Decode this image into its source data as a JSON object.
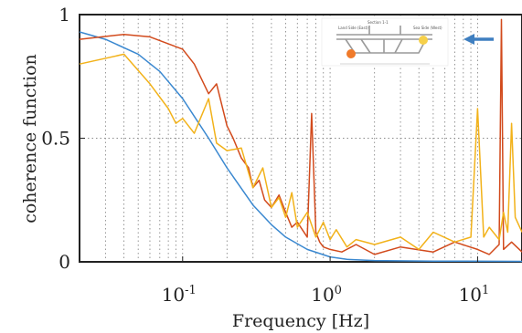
{
  "chart_data": {
    "type": "line",
    "title": "",
    "xlabel": "Frequency [Hz]",
    "ylabel": "coherence function",
    "xscale": "log",
    "xlim": [
      0.02,
      20
    ],
    "ylim": [
      0,
      1
    ],
    "x_ticks": [
      {
        "value": 0.1,
        "base": "10",
        "exp": "-1"
      },
      {
        "value": 1,
        "base": "10",
        "exp": "0"
      },
      {
        "value": 10,
        "base": "10",
        "exp": "1"
      }
    ],
    "y_ticks": [
      {
        "value": 0,
        "label": "0"
      },
      {
        "value": 0.5,
        "label": "0.5"
      },
      {
        "value": 1,
        "label": "1"
      }
    ],
    "grid": {
      "x_minor": true,
      "y_major": true,
      "style": "dotted"
    },
    "series": [
      {
        "color": "#3a88d0",
        "x": [
          0.02,
          0.03,
          0.05,
          0.07,
          0.1,
          0.15,
          0.2,
          0.3,
          0.4,
          0.5,
          0.7,
          1.0,
          1.3,
          2.0,
          5.0,
          20.0
        ],
        "y": [
          0.93,
          0.9,
          0.84,
          0.77,
          0.66,
          0.5,
          0.38,
          0.23,
          0.15,
          0.1,
          0.05,
          0.02,
          0.01,
          0.005,
          0.003,
          0.002
        ]
      },
      {
        "color": "#d24a1c",
        "x": [
          0.02,
          0.04,
          0.06,
          0.1,
          0.12,
          0.15,
          0.17,
          0.2,
          0.22,
          0.25,
          0.28,
          0.3,
          0.33,
          0.36,
          0.4,
          0.45,
          0.5,
          0.55,
          0.6,
          0.7,
          0.75,
          0.8,
          0.85,
          0.9,
          1.0,
          1.2,
          1.5,
          2.0,
          3.0,
          5.0,
          7.0,
          10.0,
          12.0,
          14.0,
          14.5,
          15.0,
          17.0,
          20.0
        ],
        "y": [
          0.9,
          0.92,
          0.91,
          0.86,
          0.8,
          0.68,
          0.72,
          0.55,
          0.5,
          0.42,
          0.38,
          0.3,
          0.33,
          0.25,
          0.22,
          0.27,
          0.2,
          0.14,
          0.16,
          0.1,
          0.6,
          0.12,
          0.08,
          0.06,
          0.05,
          0.04,
          0.07,
          0.03,
          0.06,
          0.04,
          0.08,
          0.05,
          0.03,
          0.07,
          0.98,
          0.05,
          0.08,
          0.04
        ]
      },
      {
        "color": "#f2b21a",
        "x": [
          0.02,
          0.04,
          0.06,
          0.08,
          0.09,
          0.1,
          0.12,
          0.15,
          0.17,
          0.2,
          0.25,
          0.3,
          0.35,
          0.4,
          0.45,
          0.5,
          0.55,
          0.6,
          0.7,
          0.8,
          0.9,
          1.0,
          1.1,
          1.3,
          1.5,
          2.0,
          3.0,
          4.0,
          5.0,
          7.0,
          9.0,
          10.0,
          11.0,
          12.0,
          14.0,
          15.0,
          16.0,
          17.0,
          18.0,
          20.0
        ],
        "y": [
          0.8,
          0.84,
          0.72,
          0.62,
          0.56,
          0.58,
          0.52,
          0.66,
          0.48,
          0.45,
          0.46,
          0.3,
          0.38,
          0.22,
          0.26,
          0.18,
          0.28,
          0.14,
          0.2,
          0.1,
          0.16,
          0.09,
          0.13,
          0.06,
          0.09,
          0.07,
          0.1,
          0.05,
          0.12,
          0.08,
          0.1,
          0.62,
          0.1,
          0.14,
          0.09,
          0.2,
          0.12,
          0.56,
          0.18,
          0.12
        ]
      }
    ],
    "inset": {
      "labels": [
        "Land Side (East)",
        "Section 1-1",
        "Sea Side (West)"
      ],
      "markers": [
        {
          "name": "land-side-sensor",
          "color": "#f07a2a"
        },
        {
          "name": "sea-side-sensor",
          "color": "#f6d04a"
        }
      ],
      "arrow_color": "#3f7fc0"
    }
  }
}
